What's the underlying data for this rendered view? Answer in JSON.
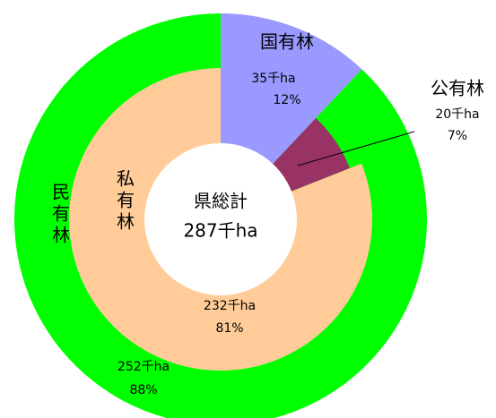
{
  "chart_data": {
    "type": "donut",
    "center_title": "県総計",
    "center_label": "287千ha",
    "rings": [
      {
        "labels": [
          "国有林",
          "民有林"
        ],
        "values": [
          12,
          88
        ],
        "value_labels": [
          "12%",
          "88%"
        ],
        "areas": [
          35,
          252
        ],
        "area_labels": [
          "35千ha",
          "252千ha"
        ],
        "colors": [
          "#9999ff",
          "#00ff00"
        ]
      },
      {
        "labels": [
          "公有林",
          "私有林"
        ],
        "values": [
          7,
          81
        ],
        "value_labels": [
          "7%",
          "81%"
        ],
        "areas": [
          20,
          232
        ],
        "area_labels": [
          "20千ha",
          "232千ha"
        ],
        "colors": [
          "#993366",
          "#ffcc99"
        ]
      }
    ]
  }
}
